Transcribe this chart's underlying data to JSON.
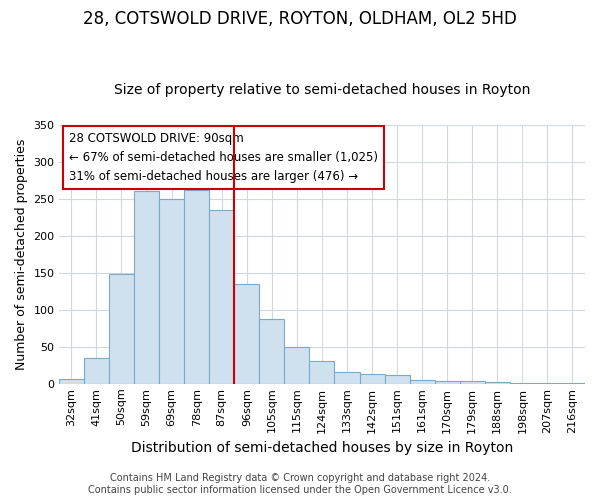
{
  "title": "28, COTSWOLD DRIVE, ROYTON, OLDHAM, OL2 5HD",
  "subtitle": "Size of property relative to semi-detached houses in Royton",
  "xlabel": "Distribution of semi-detached houses by size in Royton",
  "ylabel": "Number of semi-detached properties",
  "footer_line1": "Contains HM Land Registry data © Crown copyright and database right 2024.",
  "footer_line2": "Contains public sector information licensed under the Open Government Licence v3.0.",
  "categories": [
    "32sqm",
    "41sqm",
    "50sqm",
    "59sqm",
    "69sqm",
    "78sqm",
    "87sqm",
    "96sqm",
    "105sqm",
    "115sqm",
    "124sqm",
    "133sqm",
    "142sqm",
    "151sqm",
    "161sqm",
    "170sqm",
    "179sqm",
    "188sqm",
    "198sqm",
    "207sqm",
    "216sqm"
  ],
  "values": [
    6,
    35,
    148,
    260,
    250,
    262,
    234,
    135,
    87,
    50,
    30,
    15,
    13,
    11,
    5,
    3,
    3,
    2,
    1,
    1,
    1
  ],
  "bar_color": "#cfe0ef",
  "bar_edge_color": "#7aaac8",
  "grid_color": "#d0d8e0",
  "background_color": "#ffffff",
  "annotation_box_facecolor": "#ffffff",
  "annotation_box_edge": "#cc0000",
  "annotation_text_line1": "28 COTSWOLD DRIVE: 90sqm",
  "annotation_text_line2": "← 67% of semi-detached houses are smaller (1,025)",
  "annotation_text_line3": "31% of semi-detached houses are larger (476) →",
  "vline_index": 7,
  "vline_color": "#cc0000",
  "ylim": [
    0,
    350
  ],
  "yticks": [
    0,
    50,
    100,
    150,
    200,
    250,
    300,
    350
  ],
  "title_fontsize": 12,
  "subtitle_fontsize": 10,
  "xlabel_fontsize": 10,
  "ylabel_fontsize": 9,
  "tick_fontsize": 8,
  "annotation_fontsize": 8.5,
  "footer_fontsize": 7
}
